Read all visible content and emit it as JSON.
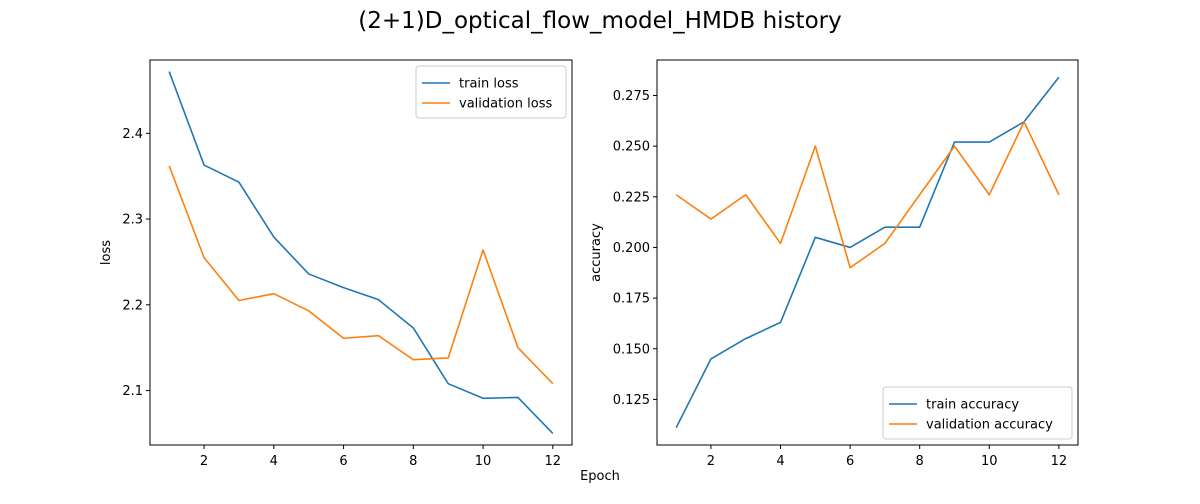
{
  "figure": {
    "title": "(2+1)D_optical_flow_model_HMDB history",
    "xlabel": "Epoch"
  },
  "colors": {
    "train": "#1f77b4",
    "validation": "#ff7f0e"
  },
  "chart_data": [
    {
      "type": "line",
      "title": "",
      "xlabel": "",
      "ylabel": "loss",
      "xlim": [
        0.45,
        12.55
      ],
      "ylim": [
        2.0365,
        2.4855
      ],
      "xticks": [
        2,
        4,
        6,
        8,
        10,
        12
      ],
      "xtick_labels": [
        "2",
        "4",
        "6",
        "8",
        "10",
        "12"
      ],
      "yticks": [
        2.1,
        2.2,
        2.3,
        2.4
      ],
      "ytick_labels": [
        "2.1",
        "2.2",
        "2.3",
        "2.4"
      ],
      "legend_position": "top-right",
      "grid": false,
      "x": [
        1,
        2,
        3,
        4,
        5,
        6,
        7,
        8,
        9,
        10,
        11,
        12
      ],
      "series": [
        {
          "name": "train loss",
          "color_key": "train",
          "values": [
            2.472,
            2.363,
            2.343,
            2.279,
            2.236,
            2.22,
            2.206,
            2.173,
            2.108,
            2.091,
            2.092,
            2.05
          ]
        },
        {
          "name": "validation loss",
          "color_key": "validation",
          "values": [
            2.362,
            2.255,
            2.205,
            2.213,
            2.193,
            2.161,
            2.164,
            2.136,
            2.138,
            2.264,
            2.15,
            2.108
          ]
        }
      ]
    },
    {
      "type": "line",
      "title": "",
      "xlabel": "",
      "ylabel": "accuracy",
      "xlim": [
        0.45,
        12.55
      ],
      "ylim": [
        0.1025,
        0.2925
      ],
      "xticks": [
        2,
        4,
        6,
        8,
        10,
        12
      ],
      "xtick_labels": [
        "2",
        "4",
        "6",
        "8",
        "10",
        "12"
      ],
      "yticks": [
        0.125,
        0.15,
        0.175,
        0.2,
        0.225,
        0.25,
        0.275
      ],
      "ytick_labels": [
        "0.125",
        "0.150",
        "0.175",
        "0.200",
        "0.225",
        "0.250",
        "0.275"
      ],
      "legend_position": "bottom-right",
      "grid": false,
      "x": [
        1,
        2,
        3,
        4,
        5,
        6,
        7,
        8,
        9,
        10,
        11,
        12
      ],
      "series": [
        {
          "name": "train accuracy",
          "color_key": "train",
          "values": [
            0.111,
            0.145,
            0.155,
            0.163,
            0.205,
            0.2,
            0.21,
            0.21,
            0.252,
            0.252,
            0.262,
            0.284
          ]
        },
        {
          "name": "validation accuracy",
          "color_key": "validation",
          "values": [
            0.226,
            0.214,
            0.226,
            0.202,
            0.25,
            0.19,
            0.202,
            0.226,
            0.25,
            0.226,
            0.262,
            0.226
          ]
        }
      ]
    }
  ]
}
